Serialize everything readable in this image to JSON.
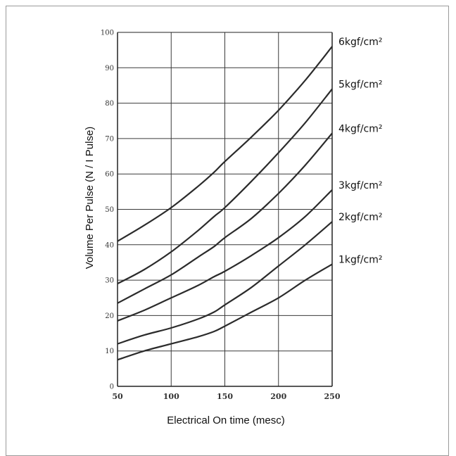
{
  "chart_data": {
    "type": "line",
    "title": "",
    "xlabel": "Electrical On time (mesc)",
    "ylabel": "Volume Per Pulse (N / I Pulse)",
    "xlim": [
      50,
      250
    ],
    "ylim": [
      0,
      100
    ],
    "xticks": [
      "50",
      "100",
      "150",
      "200",
      "250"
    ],
    "yticks": [
      "0",
      "10",
      "20",
      "30",
      "40",
      "50",
      "60",
      "70",
      "80",
      "90",
      "100"
    ],
    "grid": true,
    "x": [
      50,
      75,
      100,
      125,
      140,
      150,
      175,
      200,
      225,
      250
    ],
    "series": [
      {
        "name": "6kgf/cm²",
        "values": [
          41,
          45.5,
          50.5,
          56.5,
          60.5,
          63.5,
          70.5,
          78,
          86.5,
          96
        ]
      },
      {
        "name": "5kgf/cm²",
        "values": [
          29,
          33,
          38,
          44,
          48,
          50.5,
          58,
          66,
          74.5,
          84
        ]
      },
      {
        "name": "4kgf/cm²",
        "values": [
          23.5,
          27.5,
          31.5,
          36.5,
          39.5,
          42,
          47.5,
          54.5,
          62.5,
          71.5
        ]
      },
      {
        "name": "3kgf/cm²",
        "values": [
          18.5,
          21.5,
          25,
          28.5,
          31,
          32.5,
          37,
          42,
          48,
          55.5
        ]
      },
      {
        "name": "2kgf/cm²",
        "values": [
          12,
          14.5,
          16.5,
          19,
          21,
          23,
          28,
          34,
          40,
          46.5
        ]
      },
      {
        "name": "1kgf/cm²",
        "values": [
          7.5,
          10,
          12,
          14,
          15.5,
          17,
          21,
          25,
          30,
          34.5
        ]
      }
    ]
  }
}
